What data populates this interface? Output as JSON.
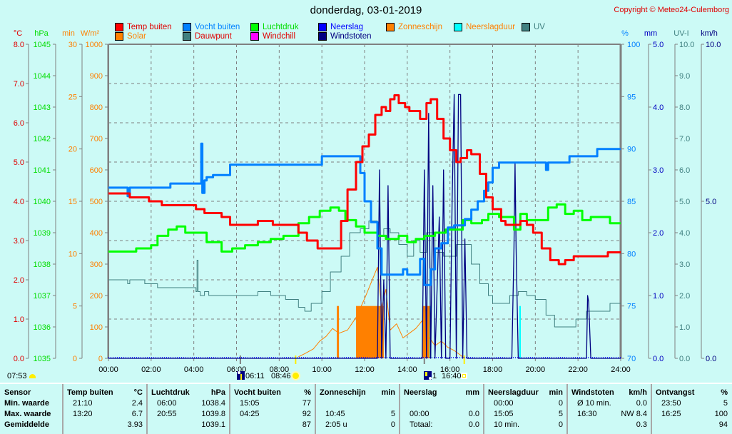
{
  "header": {
    "title": "donderdag, 03-01-2019",
    "copyright": "Copyright © Meteo24-Culemborg"
  },
  "legend": [
    {
      "label": "Temp buiten",
      "color": "#ff0000",
      "text_color": "#e00000"
    },
    {
      "label": "Solar",
      "color": "#ff8000",
      "text_color": "#ff8000"
    },
    {
      "label": "Vocht buiten",
      "color": "#0080ff",
      "text_color": "#0080ff"
    },
    {
      "label": "Dauwpunt",
      "color": "#408080",
      "text_color": "#e00000"
    },
    {
      "label": "Luchtdruk",
      "color": "#00ff00",
      "text_color": "#00dd00"
    },
    {
      "label": "Windchill",
      "color": "#ff00ff",
      "text_color": "#e00000"
    },
    {
      "label": "Neerslag",
      "color": "#0000ff",
      "text_color": "#0000ff"
    },
    {
      "label": "Windstoten",
      "color": "#000080",
      "text_color": "#000080"
    },
    {
      "label": "Zonneschijn",
      "color": "#ff8000",
      "text_color": "#ff8000"
    },
    {
      "label": "Neerslagduur",
      "color": "#00ffff",
      "text_color": "#ff8000"
    },
    {
      "label": "UV",
      "color": "#408080",
      "text_color": "#408080"
    }
  ],
  "axes": {
    "left": [
      {
        "unit": "°C",
        "color": "#e00000",
        "ticks": [
          "8.0",
          "7.0",
          "6.0",
          "5.0",
          "4.0",
          "3.0",
          "2.0",
          "1.0",
          "0.0"
        ]
      },
      {
        "unit": "hPa",
        "color": "#00dd00",
        "ticks": [
          "1045",
          "1044",
          "1043",
          "1042",
          "1041",
          "1040",
          "1039",
          "1038",
          "1037",
          "1036",
          "1035"
        ]
      },
      {
        "unit": "min",
        "color": "#ff8000",
        "ticks": [
          "30",
          "25",
          "20",
          "15",
          "10",
          "5",
          "0"
        ]
      },
      {
        "unit": "W/m²",
        "color": "#ff8000",
        "ticks": [
          "1000",
          "900",
          "800",
          "700",
          "600",
          "500",
          "400",
          "300",
          "200",
          "100",
          "0"
        ]
      }
    ],
    "right": [
      {
        "unit": "%",
        "color": "#0080ff",
        "ticks": [
          "100",
          "95",
          "90",
          "85",
          "80",
          "75",
          "70"
        ]
      },
      {
        "unit": "mm",
        "color": "#0000c0",
        "ticks": [
          "5.0",
          "4.0",
          "3.0",
          "2.0",
          "1.0",
          "0.0"
        ]
      },
      {
        "unit": "UV-I",
        "color": "#408080",
        "ticks": [
          "10.0",
          "9.0",
          "8.0",
          "7.0",
          "6.0",
          "5.0",
          "4.0",
          "3.0",
          "2.0",
          "1.0",
          "0.0"
        ]
      },
      {
        "unit": "km/h",
        "color": "#000080",
        "ticks": [
          "10.0",
          "5.0",
          "0.0"
        ]
      }
    ]
  },
  "sun_info": {
    "daylength_time": "07:53",
    "moonrise": "06:11",
    "sunrise": "08:46",
    "moon_phase": "1",
    "sunset": "16:40"
  },
  "chart_data": {
    "type": "line",
    "title": "donderdag, 03-01-2019",
    "xlabel": "",
    "x_ticks": [
      "00:00",
      "02:00",
      "04:00",
      "06:00",
      "08:00",
      "10:00",
      "12:00",
      "14:00",
      "16:00",
      "18:00",
      "20:00",
      "22:00",
      "24:00"
    ],
    "xlim": [
      0,
      24
    ],
    "grid": true,
    "series": [
      {
        "name": "Temp buiten",
        "unit": "°C",
        "ylim": [
          0,
          8
        ],
        "color": "#ff0000",
        "x": [
          0,
          0.3,
          0.8,
          1.0,
          1.7,
          1.9,
          2.5,
          3.9,
          4.1,
          4.5,
          5.3,
          5.7,
          6.4,
          6.7,
          7.0,
          7.7,
          8.4,
          8.9,
          9.3,
          9.8,
          10.5,
          10.9,
          11.2,
          11.6,
          11.9,
          12.2,
          12.5,
          12.8,
          13.0,
          13.2,
          13.4,
          13.6,
          13.9,
          14.1,
          14.4,
          14.6,
          14.9,
          15.1,
          15.4,
          15.7,
          16.0,
          16.3,
          16.5,
          16.8,
          17.0,
          17.4,
          17.7,
          18.0,
          18.4,
          18.6,
          19.0,
          19.3,
          19.6,
          19.9,
          20.3,
          20.7,
          21.1,
          21.4,
          21.8,
          22.2,
          22.8,
          23.4,
          24.0
        ],
        "y": [
          4.2,
          4.2,
          4.2,
          4.1,
          4.1,
          4.0,
          3.9,
          3.9,
          3.8,
          3.7,
          3.6,
          3.4,
          3.4,
          3.4,
          3.5,
          3.4,
          3.4,
          3.2,
          3.0,
          2.8,
          2.8,
          3.5,
          4.3,
          5.0,
          5.4,
          5.7,
          6.2,
          6.4,
          6.3,
          6.6,
          6.7,
          6.5,
          6.4,
          6.3,
          6.3,
          6.1,
          6.5,
          6.6,
          6.1,
          5.6,
          5.3,
          5.0,
          5.1,
          5.3,
          5.2,
          4.7,
          4.1,
          3.8,
          3.5,
          3.4,
          3.4,
          3.5,
          3.4,
          3.2,
          2.8,
          2.5,
          2.4,
          2.5,
          2.6,
          2.6,
          2.6,
          2.7,
          2.7
        ]
      },
      {
        "name": "Vocht buiten",
        "unit": "%",
        "ylim": [
          70,
          100
        ],
        "color": "#0080ff",
        "x": [
          0,
          0.3,
          0.8,
          0.9,
          1.0,
          2.8,
          2.9,
          4.3,
          4.35,
          4.4,
          4.5,
          4.6,
          4.9,
          5.0,
          5.6,
          5.7,
          9.9,
          10.0,
          11.6,
          11.8,
          12.0,
          12.3,
          12.6,
          12.8,
          13.0,
          13.1,
          13.6,
          13.8,
          14.0,
          14.4,
          14.6,
          14.8,
          15.1,
          15.3,
          15.6,
          15.9,
          16.2,
          16.5,
          16.7,
          17.0,
          17.3,
          17.6,
          17.8,
          18.0,
          18.3,
          18.7,
          20.4,
          20.5,
          20.6,
          21.5,
          21.6,
          22.8,
          22.9,
          24.0
        ],
        "y": [
          86.3,
          86.3,
          86.3,
          85.5,
          86.3,
          86.3,
          86.7,
          86.7,
          90.5,
          85.8,
          87.0,
          87.3,
          87.5,
          87.5,
          87.5,
          88.5,
          88.5,
          89.3,
          89.3,
          87.7,
          85.0,
          83.0,
          80.5,
          78.0,
          78.0,
          78.0,
          78.0,
          78.5,
          78.0,
          78.0,
          79.5,
          77.0,
          78.5,
          80.5,
          81.0,
          82.5,
          82.7,
          82.7,
          83.3,
          84.2,
          85.0,
          86.0,
          86.8,
          88.2,
          88.7,
          88.7,
          88.7,
          88.0,
          88.7,
          88.7,
          89.3,
          89.3,
          90.0,
          90.0
        ]
      },
      {
        "name": "Luchtdruk",
        "unit": "hPa",
        "ylim": [
          1035,
          1045
        ],
        "color": "#00ff00",
        "x": [
          0,
          1.0,
          1.3,
          2.0,
          2.3,
          2.8,
          3.2,
          3.6,
          4.0,
          4.6,
          5.3,
          5.8,
          6.0,
          6.4,
          7.0,
          7.6,
          8.2,
          8.9,
          9.4,
          9.9,
          10.4,
          10.8,
          11.1,
          11.6,
          12.0,
          12.6,
          13.0,
          13.6,
          14.0,
          14.4,
          14.8,
          15.3,
          15.8,
          16.2,
          16.6,
          17.0,
          17.5,
          17.8,
          18.3,
          18.7,
          19.0,
          19.3,
          19.6,
          20.0,
          20.6,
          21.0,
          21.4,
          21.8,
          22.2,
          22.6,
          23.0,
          23.5,
          24.0
        ],
        "y": [
          1038.4,
          1038.4,
          1038.5,
          1038.6,
          1038.9,
          1039.1,
          1039.2,
          1039.0,
          1039.0,
          1038.7,
          1038.4,
          1038.5,
          1038.5,
          1038.6,
          1038.7,
          1038.8,
          1038.9,
          1039.3,
          1039.5,
          1039.7,
          1039.8,
          1039.7,
          1039.4,
          1039.2,
          1039.0,
          1038.9,
          1038.8,
          1038.9,
          1038.7,
          1038.8,
          1038.9,
          1039.0,
          1039.1,
          1039.1,
          1039.4,
          1039.3,
          1039.4,
          1039.6,
          1039.5,
          1039.5,
          1039.1,
          1039.6,
          1039.4,
          1039.4,
          1039.8,
          1039.9,
          1039.6,
          1039.7,
          1039.4,
          1039.5,
          1039.5,
          1039.3,
          1039.3
        ]
      },
      {
        "name": "Dauwpunt",
        "unit": "°C",
        "ylim": [
          0,
          8
        ],
        "color": "#408080",
        "x": [
          0,
          0.3,
          0.8,
          0.9,
          1.0,
          1.7,
          2.0,
          2.3,
          2.8,
          3.2,
          3.6,
          3.9,
          4.1,
          4.15,
          4.2,
          4.3,
          4.5,
          4.7,
          4.9,
          5.1,
          5.6,
          6.7,
          7.0,
          7.6,
          8.3,
          8.9,
          9.2,
          9.5,
          10.0,
          10.4,
          10.9,
          11.3,
          11.8,
          12.2,
          12.6,
          12.9,
          13.2,
          13.6,
          14.0,
          14.3,
          14.6,
          14.9,
          15.3,
          15.7,
          16.0,
          16.3,
          16.7,
          17.0,
          17.4,
          17.8,
          18.0,
          18.4,
          18.8,
          19.2,
          19.6,
          20.0,
          20.5,
          20.9,
          21.3,
          21.9,
          22.4,
          22.9,
          23.5,
          24.0
        ],
        "y": [
          2.0,
          2.0,
          2.0,
          1.9,
          2.0,
          1.9,
          1.9,
          1.8,
          1.8,
          1.8,
          1.8,
          1.8,
          1.7,
          2.5,
          1.7,
          1.6,
          1.7,
          1.6,
          1.6,
          1.6,
          1.6,
          1.6,
          1.7,
          1.6,
          1.5,
          1.3,
          1.2,
          1.4,
          1.7,
          2.2,
          2.6,
          3.2,
          3.3,
          3.5,
          3.1,
          3.3,
          3.2,
          2.9,
          2.6,
          3.0,
          2.7,
          3.2,
          2.7,
          2.6,
          2.6,
          2.9,
          2.9,
          2.4,
          1.9,
          1.6,
          1.4,
          1.4,
          1.6,
          1.7,
          1.6,
          1.5,
          1.1,
          0.8,
          0.8,
          1.0,
          1.2,
          1.2,
          1.4,
          1.4
        ]
      },
      {
        "name": "Windstoten",
        "unit": "km/h",
        "ylim": [
          0,
          10
        ],
        "color": "#000080",
        "x": [
          0,
          12.6,
          12.7,
          12.8,
          12.9,
          13.0,
          13.1,
          13.2,
          13.3,
          14.7,
          14.8,
          14.9,
          15.0,
          15.1,
          15.2,
          15.3,
          15.5,
          15.6,
          15.7,
          15.8,
          16.0,
          16.1,
          16.2,
          16.3,
          16.4,
          16.5,
          16.6,
          16.7,
          16.8,
          18.9,
          19.0,
          19.05,
          19.1,
          19.2,
          22.4,
          22.45,
          22.5,
          22.6,
          24
        ],
        "y": [
          0,
          0,
          6.0,
          0,
          2.5,
          0,
          5.5,
          0,
          0,
          0,
          6.0,
          0,
          7.8,
          0,
          5.5,
          0,
          4.5,
          0,
          6.0,
          0,
          0,
          5.0,
          8.4,
          0,
          8.4,
          8.4,
          0,
          3.8,
          0,
          0,
          3.5,
          6.2,
          3.5,
          0,
          0,
          2.0,
          1.8,
          0,
          0
        ]
      },
      {
        "name": "Solar",
        "unit": "W/m²",
        "ylim": [
          0,
          1000
        ],
        "color": "#ff8000",
        "x": [
          8.9,
          9.2,
          9.6,
          9.9,
          10.2,
          10.5,
          10.8,
          11.2,
          11.6,
          12.0,
          12.3,
          12.6,
          12.8,
          13.0,
          13.2,
          13.5,
          13.8,
          14.1,
          14.4,
          14.7,
          15.0,
          15.3,
          15.6,
          15.9,
          16.2,
          16.5,
          16.67
        ],
        "y": [
          5,
          15,
          30,
          55,
          70,
          95,
          80,
          90,
          130,
          190,
          240,
          290,
          160,
          220,
          90,
          110,
          65,
          80,
          95,
          120,
          70,
          40,
          55,
          35,
          25,
          10,
          0
        ]
      }
    ],
    "bars": [
      {
        "name": "Zonneschijn",
        "unit": "min",
        "ylim": [
          0,
          30
        ],
        "color": "#ff8000",
        "segments": [
          {
            "from": 10.7,
            "to": 10.8,
            "value": 5
          },
          {
            "from": 11.6,
            "to": 12.9,
            "value": 5
          },
          {
            "from": 14.7,
            "to": 15.1,
            "value": 5
          }
        ]
      },
      {
        "name": "Neerslagduur",
        "unit": "min",
        "ylim": [
          0,
          30
        ],
        "color": "#00ffff",
        "segments": [
          {
            "from": 15.05,
            "to": 15.12,
            "value": 5
          },
          {
            "from": 19.25,
            "to": 19.32,
            "value": 5
          }
        ]
      }
    ]
  },
  "stats": {
    "columns": [
      {
        "header": "Sensor",
        "unit": "",
        "rows": [
          {
            "time": "Min. waarde",
            "value": ""
          },
          {
            "time": "Max. waarde",
            "value": ""
          },
          {
            "time": "Gemiddelde",
            "value": ""
          }
        ]
      },
      {
        "header": "Temp buiten",
        "unit": "°C",
        "rows": [
          {
            "time": "21:10",
            "value": "2.4"
          },
          {
            "time": "13:20",
            "value": "6.7"
          },
          {
            "time": "",
            "value": "3.93"
          }
        ]
      },
      {
        "header": "Luchtdruk",
        "unit": "hPa",
        "rows": [
          {
            "time": "06:00",
            "value": "1038.4"
          },
          {
            "time": "20:55",
            "value": "1039.8"
          },
          {
            "time": "",
            "value": "1039.1"
          }
        ]
      },
      {
        "header": "Vocht buiten",
        "unit": "%",
        "rows": [
          {
            "time": "15:05",
            "value": "77"
          },
          {
            "time": "04:25",
            "value": "92"
          },
          {
            "time": "",
            "value": "87"
          }
        ]
      },
      {
        "header": "Zonneschijn",
        "unit": "min",
        "rows": [
          {
            "time": "",
            "value": ""
          },
          {
            "time": "10:45",
            "value": "5"
          },
          {
            "time": "2:05 u",
            "value": "0"
          }
        ]
      },
      {
        "header": "Neerslag",
        "unit": "mm",
        "rows": [
          {
            "time": "",
            "value": ""
          },
          {
            "time": "00:00",
            "value": "0.0"
          },
          {
            "time": "Totaal:",
            "value": "0.0"
          }
        ]
      },
      {
        "header": "Neerslagduur",
        "unit": "min",
        "rows": [
          {
            "time": "00:00",
            "value": "0"
          },
          {
            "time": "15:05",
            "value": "5"
          },
          {
            "time": "10 min.",
            "value": "0"
          }
        ]
      },
      {
        "header": "Windstoten",
        "unit": "km/h",
        "rows": [
          {
            "time": "Ø 10 min.",
            "value": "0.0"
          },
          {
            "time": "16:30",
            "value": "NW 8.4"
          },
          {
            "time": "",
            "value": "0.3"
          }
        ]
      },
      {
        "header": "Ontvangst",
        "unit": "%",
        "rows": [
          {
            "time": "23:50",
            "value": "5"
          },
          {
            "time": "16:25",
            "value": "100"
          },
          {
            "time": "",
            "value": "94"
          }
        ]
      }
    ]
  }
}
